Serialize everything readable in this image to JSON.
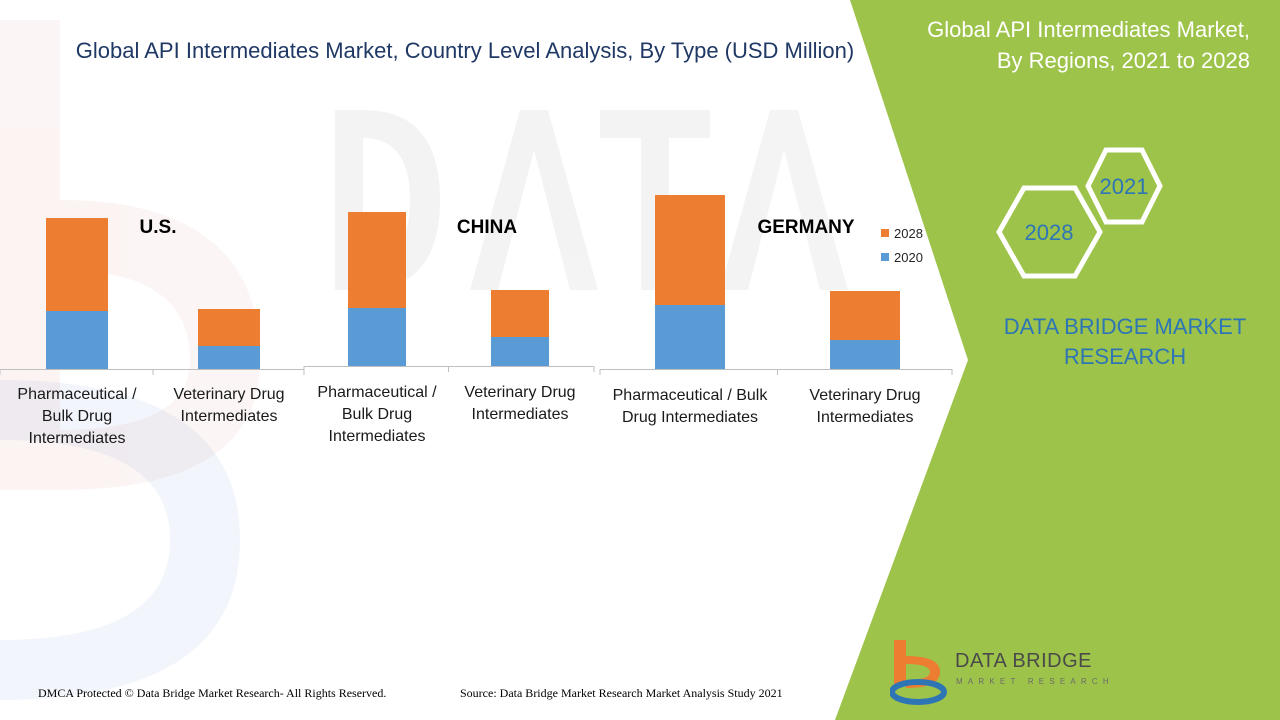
{
  "title": "Global API Intermediates Market, Country Level Analysis, By Type (USD Million)",
  "side_panel": {
    "title": "Global API Intermediates Market, By Regions, 2021 to 2028",
    "hex_large": "2028",
    "hex_small": "2021",
    "brand": "DATA BRIDGE MARKET RESEARCH"
  },
  "logo": {
    "name": "DATA BRIDGE",
    "tagline": "MARKET RESEARCH"
  },
  "footer": {
    "copyright": "DMCA Protected © Data Bridge Market Research- All Rights Reserved.",
    "source": "Source: Data Bridge Market Research Market Analysis Study 2021"
  },
  "colors": {
    "series_2028": "#ed7d31",
    "series_2020": "#5b9bd5",
    "panel_green": "#9dc34a",
    "title_navy": "#1f3864",
    "brand_blue": "#2e75b6"
  },
  "chart_data": [
    {
      "type": "bar",
      "stacked": true,
      "title": "U.S.",
      "categories": [
        "Pharmaceutical / Bulk Drug Intermediates",
        "Veterinary Drug Intermediates"
      ],
      "series": [
        {
          "name": "2020",
          "values": [
            58,
            23
          ]
        },
        {
          "name": "2028",
          "values": [
            93,
            37
          ]
        }
      ],
      "ylim": [
        0,
        200
      ]
    },
    {
      "type": "bar",
      "stacked": true,
      "title": "CHINA",
      "categories": [
        "Pharmaceutical / Bulk Drug Intermediates",
        "Veterinary Drug Intermediates"
      ],
      "series": [
        {
          "name": "2020",
          "values": [
            58,
            29
          ]
        },
        {
          "name": "2028",
          "values": [
            96,
            47
          ]
        }
      ],
      "ylim": [
        0,
        200
      ]
    },
    {
      "type": "bar",
      "stacked": true,
      "title": "GERMANY",
      "categories": [
        "Pharmaceutical / Bulk Drug Intermediates",
        "Veterinary Drug Intermediates"
      ],
      "series": [
        {
          "name": "2020",
          "values": [
            64,
            29
          ]
        },
        {
          "name": "2028",
          "values": [
            110,
            49
          ]
        }
      ],
      "legend": {
        "position": "top-right",
        "entries": [
          "2028",
          "2020"
        ]
      },
      "ylim": [
        0,
        200
      ]
    }
  ]
}
